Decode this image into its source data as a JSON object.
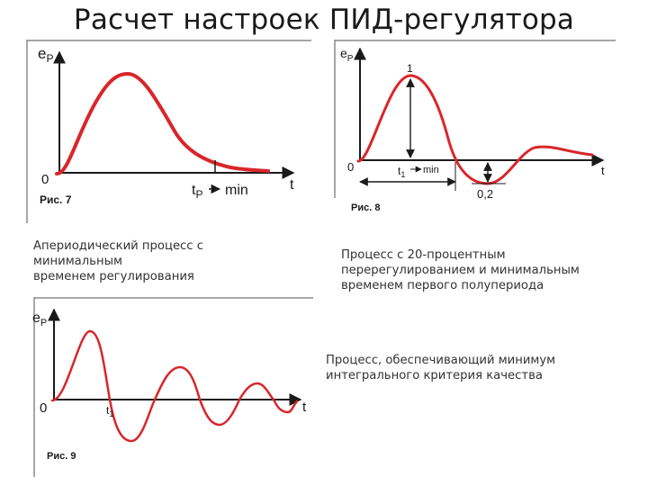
{
  "page": {
    "title": "Расчет настроек ПИД-регулятора"
  },
  "figures": {
    "fig7": {
      "label": "Рис. 7",
      "y_axis": "e",
      "y_axis_sub": "P",
      "origin": "0",
      "x_axis": "t",
      "time_mark": "t",
      "time_mark_sub": "P",
      "time_mark_suffix": "min"
    },
    "fig8": {
      "label": "Рис. 8",
      "y_axis": "e",
      "y_axis_sub": "P",
      "origin": "0",
      "x_axis": "t",
      "peak_value": "1",
      "time_mark": "t",
      "time_mark_sub": "1",
      "time_mark_suffix": "min",
      "overshoot_value": "0,2"
    },
    "fig9": {
      "label": "Рис. 9",
      "y_axis": "e",
      "y_axis_sub": "P",
      "origin": "0",
      "x_axis": "t",
      "time_mark": "t",
      "time_mark_sub": "1"
    }
  },
  "captions": {
    "fig7": [
      "Апериодический процесс с",
      "минимальным",
      "временем регулирования"
    ],
    "fig8": [
      "Процесс с 20-процентным",
      "перерегулированием и минимальным",
      "временем первого полупериода"
    ],
    "fig9": [
      "Процесс, обеспечивающий минимум",
      "интегрального критерия качества"
    ]
  },
  "colors": {
    "curve": "#d8262b",
    "axis": "#1a1a1a",
    "frame": "#8a8a8a"
  }
}
